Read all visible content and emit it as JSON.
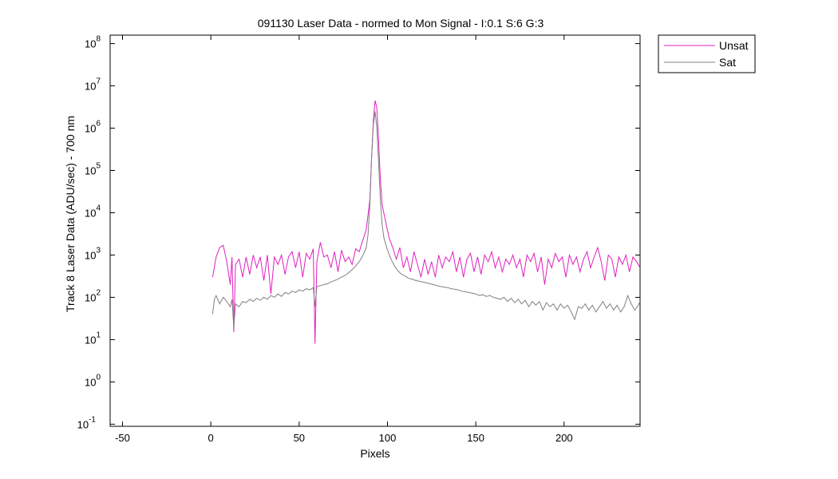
{
  "chart_data": {
    "type": "line",
    "title": "091130 Laser Data - normed to Mon Signal -   I:0.1  S:6  G:3",
    "xlabel": "Pixels",
    "ylabel": "Track 8 Laser Data (ADU/sec) - 700 nm",
    "xlim": [
      -57,
      243
    ],
    "ylim_log10": [
      -1.05,
      8.2
    ],
    "yscale": "log",
    "grid": false,
    "legend_position": "outside-top-right",
    "x_ticks": [
      -50,
      0,
      50,
      100,
      150,
      200
    ],
    "y_ticks": [
      {
        "base": "10",
        "exp": "-1"
      },
      {
        "base": "10",
        "exp": "0"
      },
      {
        "base": "10",
        "exp": "1"
      },
      {
        "base": "10",
        "exp": "2"
      },
      {
        "base": "10",
        "exp": "3"
      },
      {
        "base": "10",
        "exp": "4"
      },
      {
        "base": "10",
        "exp": "5"
      },
      {
        "base": "10",
        "exp": "6"
      },
      {
        "base": "10",
        "exp": "7"
      },
      {
        "base": "10",
        "exp": "8"
      }
    ],
    "x_range": [
      1,
      243
    ],
    "series": [
      {
        "name": "Unsat",
        "color": "#e020c0",
        "points_x_y": [
          [
            1,
            300
          ],
          [
            3,
            900
          ],
          [
            5,
            1500
          ],
          [
            7,
            1700
          ],
          [
            9,
            700
          ],
          [
            11,
            200
          ],
          [
            12,
            900
          ],
          [
            13,
            15
          ],
          [
            14,
            600
          ],
          [
            16,
            800
          ],
          [
            18,
            300
          ],
          [
            20,
            900
          ],
          [
            22,
            350
          ],
          [
            24,
            1000
          ],
          [
            26,
            500
          ],
          [
            28,
            900
          ],
          [
            30,
            250
          ],
          [
            32,
            1000
          ],
          [
            34,
            120
          ],
          [
            36,
            900
          ],
          [
            38,
            600
          ],
          [
            40,
            1000
          ],
          [
            42,
            350
          ],
          [
            44,
            900
          ],
          [
            46,
            1200
          ],
          [
            48,
            500
          ],
          [
            50,
            1200
          ],
          [
            52,
            300
          ],
          [
            54,
            1100
          ],
          [
            56,
            800
          ],
          [
            58,
            1400
          ],
          [
            59,
            8
          ],
          [
            60,
            700
          ],
          [
            62,
            2000
          ],
          [
            64,
            900
          ],
          [
            66,
            1000
          ],
          [
            68,
            500
          ],
          [
            70,
            1200
          ],
          [
            72,
            400
          ],
          [
            74,
            1300
          ],
          [
            76,
            700
          ],
          [
            78,
            900
          ],
          [
            80,
            600
          ],
          [
            82,
            1400
          ],
          [
            84,
            1200
          ],
          [
            86,
            2200
          ],
          [
            88,
            4000
          ],
          [
            90,
            20000
          ],
          [
            91,
            200000
          ],
          [
            92,
            1500000
          ],
          [
            93,
            4500000
          ],
          [
            94,
            3000000
          ],
          [
            95,
            500000
          ],
          [
            96,
            60000
          ],
          [
            97,
            15000
          ],
          [
            99,
            6000
          ],
          [
            101,
            2500
          ],
          [
            103,
            1500
          ],
          [
            105,
            800
          ],
          [
            107,
            1500
          ],
          [
            109,
            500
          ],
          [
            111,
            900
          ],
          [
            113,
            400
          ],
          [
            115,
            1200
          ],
          [
            117,
            600
          ],
          [
            119,
            300
          ],
          [
            121,
            800
          ],
          [
            123,
            350
          ],
          [
            125,
            700
          ],
          [
            127,
            300
          ],
          [
            129,
            1000
          ],
          [
            131,
            500
          ],
          [
            133,
            900
          ],
          [
            135,
            700
          ],
          [
            137,
            1200
          ],
          [
            139,
            400
          ],
          [
            141,
            900
          ],
          [
            143,
            300
          ],
          [
            145,
            800
          ],
          [
            147,
            1100
          ],
          [
            149,
            400
          ],
          [
            151,
            900
          ],
          [
            153,
            350
          ],
          [
            155,
            1000
          ],
          [
            157,
            700
          ],
          [
            159,
            1200
          ],
          [
            161,
            500
          ],
          [
            163,
            900
          ],
          [
            165,
            400
          ],
          [
            167,
            800
          ],
          [
            169,
            600
          ],
          [
            171,
            1000
          ],
          [
            173,
            500
          ],
          [
            175,
            800
          ],
          [
            177,
            300
          ],
          [
            179,
            1000
          ],
          [
            181,
            700
          ],
          [
            183,
            1100
          ],
          [
            185,
            400
          ],
          [
            187,
            900
          ],
          [
            189,
            200
          ],
          [
            191,
            800
          ],
          [
            193,
            500
          ],
          [
            195,
            1100
          ],
          [
            197,
            700
          ],
          [
            199,
            900
          ],
          [
            201,
            300
          ],
          [
            203,
            1000
          ],
          [
            205,
            600
          ],
          [
            207,
            900
          ],
          [
            209,
            400
          ],
          [
            211,
            800
          ],
          [
            213,
            1200
          ],
          [
            215,
            500
          ],
          [
            217,
            900
          ],
          [
            219,
            1500
          ],
          [
            221,
            700
          ],
          [
            223,
            250
          ],
          [
            225,
            1000
          ],
          [
            227,
            800
          ],
          [
            229,
            300
          ],
          [
            231,
            900
          ],
          [
            233,
            600
          ],
          [
            235,
            1000
          ],
          [
            237,
            400
          ],
          [
            239,
            900
          ],
          [
            241,
            700
          ],
          [
            243,
            500
          ]
        ]
      },
      {
        "name": "Sat",
        "color": "#808080",
        "points_x_y": [
          [
            1,
            40
          ],
          [
            2,
            90
          ],
          [
            3,
            110
          ],
          [
            5,
            70
          ],
          [
            7,
            100
          ],
          [
            9,
            80
          ],
          [
            11,
            60
          ],
          [
            12,
            90
          ],
          [
            13,
            20
          ],
          [
            14,
            70
          ],
          [
            16,
            60
          ],
          [
            18,
            80
          ],
          [
            20,
            75
          ],
          [
            22,
            90
          ],
          [
            24,
            80
          ],
          [
            26,
            95
          ],
          [
            28,
            85
          ],
          [
            30,
            100
          ],
          [
            32,
            90
          ],
          [
            34,
            110
          ],
          [
            36,
            100
          ],
          [
            38,
            120
          ],
          [
            40,
            105
          ],
          [
            42,
            130
          ],
          [
            44,
            120
          ],
          [
            46,
            140
          ],
          [
            48,
            130
          ],
          [
            50,
            150
          ],
          [
            52,
            140
          ],
          [
            54,
            160
          ],
          [
            56,
            150
          ],
          [
            58,
            170
          ],
          [
            59,
            60
          ],
          [
            60,
            180
          ],
          [
            62,
            190
          ],
          [
            64,
            200
          ],
          [
            66,
            210
          ],
          [
            68,
            230
          ],
          [
            70,
            250
          ],
          [
            72,
            270
          ],
          [
            74,
            300
          ],
          [
            76,
            330
          ],
          [
            78,
            380
          ],
          [
            80,
            450
          ],
          [
            82,
            550
          ],
          [
            84,
            700
          ],
          [
            86,
            950
          ],
          [
            88,
            1500
          ],
          [
            89,
            3000
          ],
          [
            90,
            15000
          ],
          [
            91,
            200000
          ],
          [
            92,
            1200000
          ],
          [
            93,
            2500000
          ],
          [
            94,
            1000000
          ],
          [
            95,
            150000
          ],
          [
            96,
            20000
          ],
          [
            97,
            5000
          ],
          [
            98,
            2500
          ],
          [
            100,
            1300
          ],
          [
            102,
            800
          ],
          [
            104,
            550
          ],
          [
            106,
            420
          ],
          [
            108,
            350
          ],
          [
            110,
            320
          ],
          [
            112,
            280
          ],
          [
            114,
            270
          ],
          [
            116,
            250
          ],
          [
            118,
            240
          ],
          [
            120,
            230
          ],
          [
            122,
            220
          ],
          [
            124,
            210
          ],
          [
            126,
            200
          ],
          [
            128,
            190
          ],
          [
            130,
            180
          ],
          [
            132,
            175
          ],
          [
            134,
            170
          ],
          [
            136,
            160
          ],
          [
            138,
            155
          ],
          [
            140,
            150
          ],
          [
            142,
            140
          ],
          [
            144,
            135
          ],
          [
            146,
            130
          ],
          [
            148,
            125
          ],
          [
            150,
            120
          ],
          [
            152,
            110
          ],
          [
            154,
            115
          ],
          [
            156,
            105
          ],
          [
            158,
            110
          ],
          [
            160,
            100
          ],
          [
            162,
            95
          ],
          [
            164,
            90
          ],
          [
            166,
            100
          ],
          [
            168,
            80
          ],
          [
            170,
            95
          ],
          [
            172,
            75
          ],
          [
            174,
            90
          ],
          [
            176,
            70
          ],
          [
            178,
            85
          ],
          [
            180,
            60
          ],
          [
            182,
            80
          ],
          [
            184,
            65
          ],
          [
            186,
            80
          ],
          [
            188,
            50
          ],
          [
            190,
            75
          ],
          [
            192,
            60
          ],
          [
            194,
            70
          ],
          [
            196,
            50
          ],
          [
            198,
            70
          ],
          [
            200,
            55
          ],
          [
            202,
            65
          ],
          [
            204,
            45
          ],
          [
            206,
            30
          ],
          [
            208,
            60
          ],
          [
            210,
            55
          ],
          [
            212,
            70
          ],
          [
            214,
            50
          ],
          [
            216,
            65
          ],
          [
            218,
            45
          ],
          [
            220,
            60
          ],
          [
            222,
            80
          ],
          [
            224,
            55
          ],
          [
            226,
            70
          ],
          [
            228,
            50
          ],
          [
            230,
            65
          ],
          [
            232,
            45
          ],
          [
            234,
            60
          ],
          [
            236,
            110
          ],
          [
            238,
            70
          ],
          [
            240,
            50
          ],
          [
            242,
            65
          ],
          [
            243,
            80
          ]
        ]
      }
    ]
  }
}
